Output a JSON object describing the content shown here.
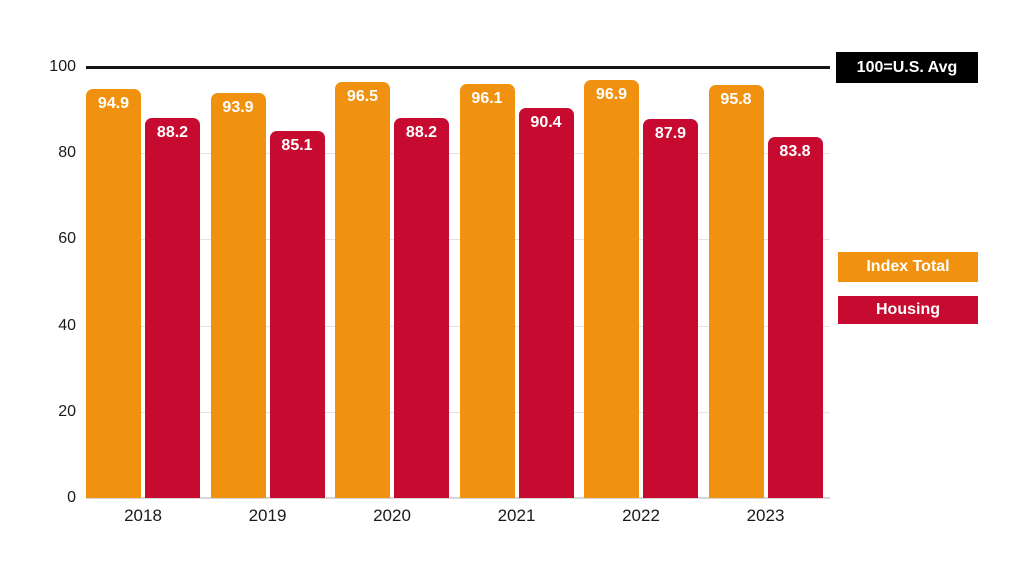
{
  "chart_data": {
    "type": "bar",
    "categories": [
      "2018",
      "2019",
      "2020",
      "2021",
      "2022",
      "2023"
    ],
    "series": [
      {
        "name": "Index Total",
        "color": "#F0920F",
        "values": [
          94.9,
          93.9,
          96.5,
          96.1,
          96.9,
          95.8
        ]
      },
      {
        "name": "Housing",
        "color": "#C60A30",
        "values": [
          88.2,
          85.1,
          88.2,
          90.4,
          87.9,
          83.8
        ]
      }
    ],
    "title": "",
    "xlabel": "",
    "ylabel": "",
    "ylim": [
      0,
      100
    ],
    "yticks": [
      0,
      20,
      40,
      60,
      80,
      100
    ],
    "grid": true,
    "value_labels": true,
    "reference_line": {
      "value": 100,
      "label": "100=U.S. Avg"
    },
    "legend_position": "right"
  },
  "legend": {
    "reference_label": "100=U.S. Avg",
    "items": [
      {
        "label": "Index Total",
        "color": "#F0920F"
      },
      {
        "label": "Housing",
        "color": "#C60A30"
      }
    ]
  },
  "colors": {
    "background": "#ffffff",
    "index_total": "#F0920F",
    "housing": "#C60A30",
    "reference_line": "#141414",
    "reference_badge_bg": "#000000",
    "gridline": "#e3e3e3",
    "baseline": "#d6d6d6",
    "axis_text": "#1a1a1a",
    "bar_label_text": "#ffffff"
  }
}
